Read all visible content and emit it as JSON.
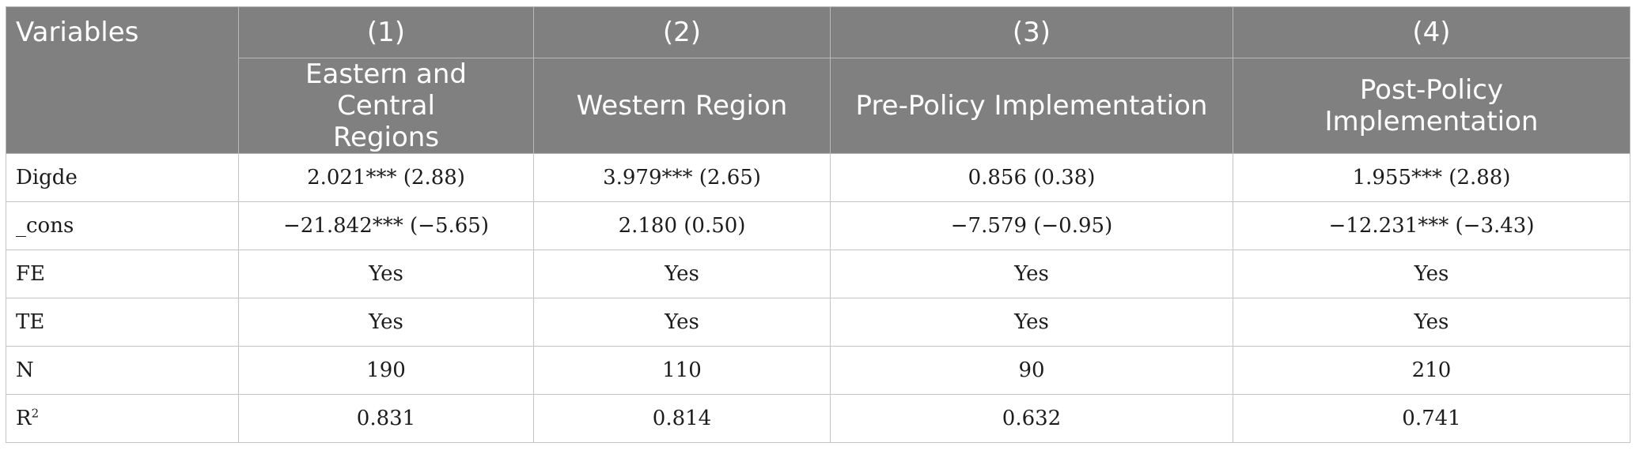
{
  "table": {
    "corner_label": "Variables",
    "column_numbers": [
      "(1)",
      "(2)",
      "(3)",
      "(4)"
    ],
    "column_titles": [
      "Eastern and Central Regions",
      "Western Region",
      "Pre-Policy Implementation",
      "Post-Policy Implementation"
    ],
    "rows": [
      {
        "label": "Digde",
        "cells": [
          "2.021*** (2.88)",
          "3.979*** (2.65)",
          "0.856 (0.38)",
          "1.955*** (2.88)"
        ]
      },
      {
        "label": "_cons",
        "cells": [
          "−21.842*** (−5.65)",
          "2.180 (0.50)",
          "−7.579 (−0.95)",
          "−12.231*** (−3.43)"
        ]
      },
      {
        "label": "FE",
        "cells": [
          "Yes",
          "Yes",
          "Yes",
          "Yes"
        ]
      },
      {
        "label": "TE",
        "cells": [
          "Yes",
          "Yes",
          "Yes",
          "Yes"
        ]
      },
      {
        "label": "N",
        "cells": [
          "190",
          "110",
          "90",
          "210"
        ]
      },
      {
        "label": "R",
        "label_sup": "2",
        "cells": [
          "0.831",
          "0.814",
          "0.632",
          "0.741"
        ]
      }
    ]
  }
}
